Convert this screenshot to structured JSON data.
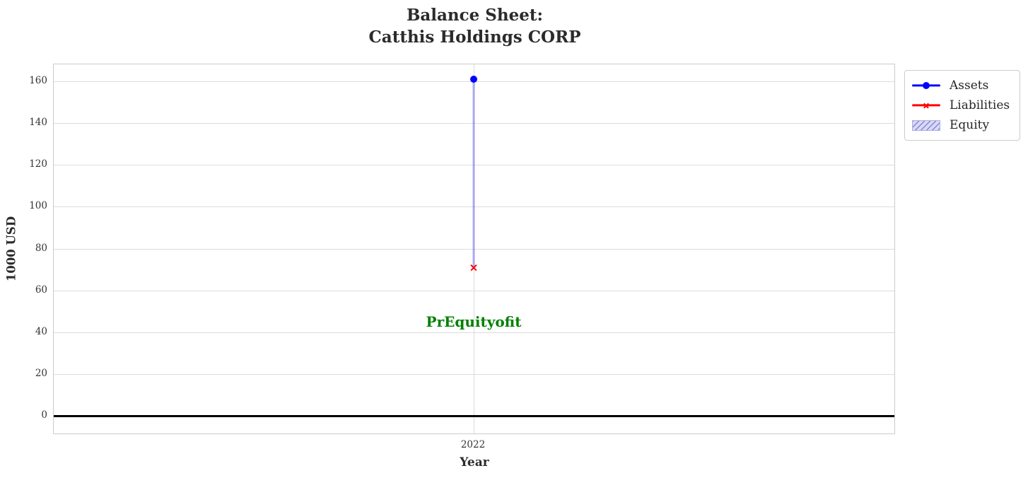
{
  "chart_data": {
    "type": "line",
    "title": "Balance Sheet:\nCatthis Holdings CORP",
    "xlabel": "Year",
    "ylabel": "1000 USD",
    "x": [
      2022
    ],
    "xtick_labels": [
      "2022"
    ],
    "yticks": [
      0,
      20,
      40,
      60,
      80,
      100,
      120,
      140,
      160
    ],
    "ylim": [
      -8.1,
      168.1
    ],
    "grid": true,
    "series": [
      {
        "name": "Assets",
        "marker": "circle",
        "color": "#0000ff",
        "values": [
          161
        ]
      },
      {
        "name": "Liabilities",
        "marker": "x",
        "color": "#ff0000",
        "values": [
          71
        ]
      }
    ],
    "band": {
      "name": "Equity",
      "from_value": 71,
      "to_value": 161,
      "fill_color": "rgba(0,0,255,0.3)"
    },
    "zero_line": {
      "y": 0,
      "color": "#000000"
    },
    "annotation": {
      "text": "PrEquityofit",
      "x": 2022,
      "y": 45,
      "color": "#008000"
    },
    "legend": {
      "position": "outside-top-right",
      "entries": [
        {
          "label": "Assets",
          "type": "line-circle",
          "color": "#0000ff"
        },
        {
          "label": "Liabilities",
          "type": "line-x",
          "color": "#ff0000"
        },
        {
          "label": "Equity",
          "type": "hatched-patch",
          "fill": "#d9d9f8",
          "hatch_color": "#8585d6",
          "border_color": "#aab0e4"
        }
      ]
    },
    "colors": {
      "grid": "#dcdcdc",
      "spine": "#cccccc",
      "title_text": "#2b2b2b",
      "tick_text": "#333333"
    }
  }
}
